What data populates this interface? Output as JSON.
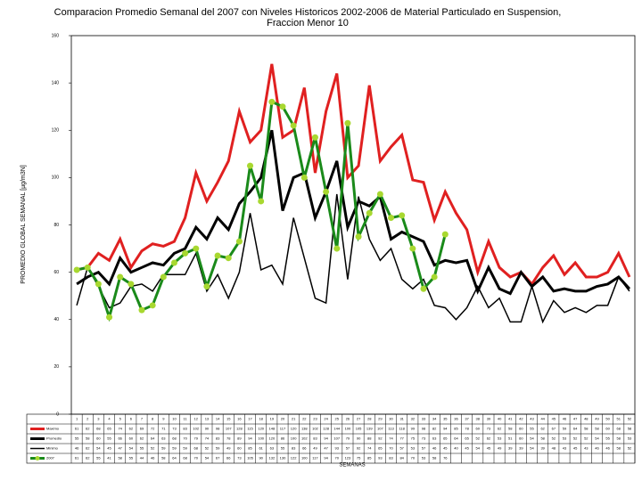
{
  "chart_data": {
    "type": "line",
    "title": "Comparacion Promedio Semanal del 2007 con Niveles Historicos 2002-2006 de Material Particulado en Suspension,",
    "subtitle": "Fraccion Menor 10",
    "y_label": "PROMEDIO GLOBAL SEMANAL [µg/m3N]",
    "x_label": "SEMANAS",
    "categories": [
      "1",
      "2",
      "3",
      "4",
      "5",
      "6",
      "7",
      "8",
      "9",
      "10",
      "11",
      "12",
      "13",
      "14",
      "15",
      "16",
      "17",
      "18",
      "19",
      "20",
      "21",
      "22",
      "23",
      "24",
      "25",
      "26",
      "27",
      "28",
      "29",
      "30",
      "31",
      "32",
      "33",
      "34",
      "35",
      "36",
      "37",
      "38",
      "39",
      "40",
      "41",
      "42",
      "43",
      "44",
      "45",
      "46",
      "47",
      "48",
      "49",
      "50",
      "51",
      "52"
    ],
    "ylim": [
      0,
      160
    ],
    "yticks": [
      0,
      20,
      40,
      60,
      80,
      100,
      120,
      140,
      160
    ],
    "grid": false,
    "series": [
      {
        "name": "Maximo",
        "color": "#e02020",
        "width": 3,
        "values": [
          61,
          62,
          68,
          65,
          74,
          62,
          69,
          72,
          71,
          73,
          83,
          102,
          90,
          98,
          107,
          128,
          115,
          120,
          148,
          117,
          120,
          138,
          102,
          128,
          144,
          100,
          105,
          139,
          107,
          113,
          118,
          99,
          98,
          82,
          94,
          85,
          78,
          60,
          73,
          62,
          58,
          60,
          55,
          62,
          67,
          59,
          64,
          58,
          58,
          60,
          68,
          58
        ]
      },
      {
        "name": "Promedio",
        "color": "#000000",
        "width": 3,
        "values": [
          55,
          58,
          60,
          55,
          66,
          60,
          62,
          64,
          63,
          68,
          70,
          79,
          74,
          83,
          78,
          89,
          94,
          100,
          120,
          86,
          100,
          102,
          83,
          94,
          107,
          79,
          90,
          88,
          92,
          74,
          77,
          75,
          73,
          63,
          65,
          64,
          65,
          52,
          62,
          53,
          51,
          60,
          54,
          58,
          52,
          53,
          52,
          52,
          54,
          55,
          58,
          53
        ]
      },
      {
        "name": "Minimo",
        "color": "#000000",
        "width": 1.5,
        "values": [
          46,
          62,
          54,
          45,
          47,
          54,
          55,
          52,
          59,
          59,
          59,
          68,
          52,
          59,
          49,
          60,
          85,
          61,
          63,
          55,
          83,
          66,
          49,
          47,
          93,
          57,
          92,
          74,
          65,
          70,
          57,
          53,
          57,
          46,
          45,
          40,
          45,
          54,
          45,
          49,
          39,
          39,
          54,
          39,
          48,
          43,
          45,
          43,
          46,
          46,
          58,
          52
        ]
      },
      {
        "name": "2007",
        "color": "#1a8a1a",
        "marker_color": "#a8d830",
        "width": 3,
        "values": [
          61,
          62,
          55,
          41,
          58,
          55,
          44,
          46,
          58,
          64,
          68,
          70,
          54,
          67,
          66,
          73,
          105,
          90,
          132,
          130,
          122,
          100,
          117,
          94,
          70,
          123,
          75,
          85,
          93,
          83,
          84,
          70,
          53,
          58,
          76,
          null,
          null,
          null,
          null,
          null,
          null,
          null,
          null,
          null,
          null,
          null,
          null,
          null,
          null,
          null,
          null,
          null
        ]
      }
    ]
  }
}
